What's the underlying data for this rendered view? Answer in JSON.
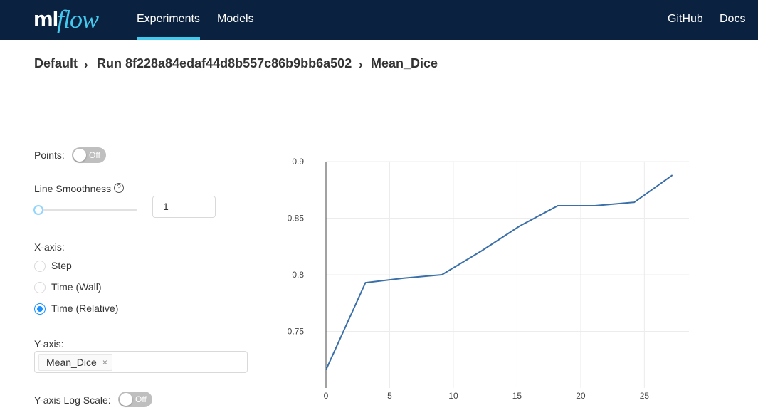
{
  "header": {
    "logo_ml": "ml",
    "logo_flow": "flow",
    "nav": {
      "experiments": "Experiments",
      "models": "Models"
    },
    "links": {
      "github": "GitHub",
      "docs": "Docs"
    },
    "accent_color": "#43c9ed",
    "bg_color": "#0a2240"
  },
  "breadcrumb": {
    "experiment": "Default",
    "run": "Run 8f228a84edaf44d8b557c86b9bb6a502",
    "metric": "Mean_Dice",
    "separator": "›"
  },
  "controls": {
    "points_label": "Points:",
    "points_state": "Off",
    "smoothness_label": "Line Smoothness",
    "help_icon": "?",
    "smoothness_value": "1",
    "xaxis_label": "X-axis:",
    "xaxis_options": [
      "Step",
      "Time (Wall)",
      "Time (Relative)"
    ],
    "xaxis_selected": "Time (Relative)",
    "yaxis_label": "Y-axis:",
    "yaxis_tag": "Mean_Dice",
    "tag_close": "×",
    "logscale_label": "Y-axis Log Scale:",
    "logscale_state": "Off"
  },
  "chart_data": {
    "type": "line",
    "x": [
      0,
      3.1,
      6.1,
      9.1,
      12.2,
      15.2,
      18.2,
      21.1,
      24.2,
      27.2
    ],
    "y": [
      0.716,
      0.793,
      0.797,
      0.8,
      0.821,
      0.843,
      0.861,
      0.861,
      0.864,
      0.888
    ],
    "xticks": [
      0,
      5,
      10,
      15,
      20,
      25
    ],
    "yticks": [
      0.75,
      0.8,
      0.85,
      0.9
    ],
    "ytick_labels": [
      "0.75",
      "0.8",
      "0.85",
      "0.9"
    ],
    "xlim": [
      0,
      28.5
    ],
    "ylim": [
      0.7,
      0.9
    ],
    "grid": true,
    "line_color": "#3a6fa8"
  }
}
